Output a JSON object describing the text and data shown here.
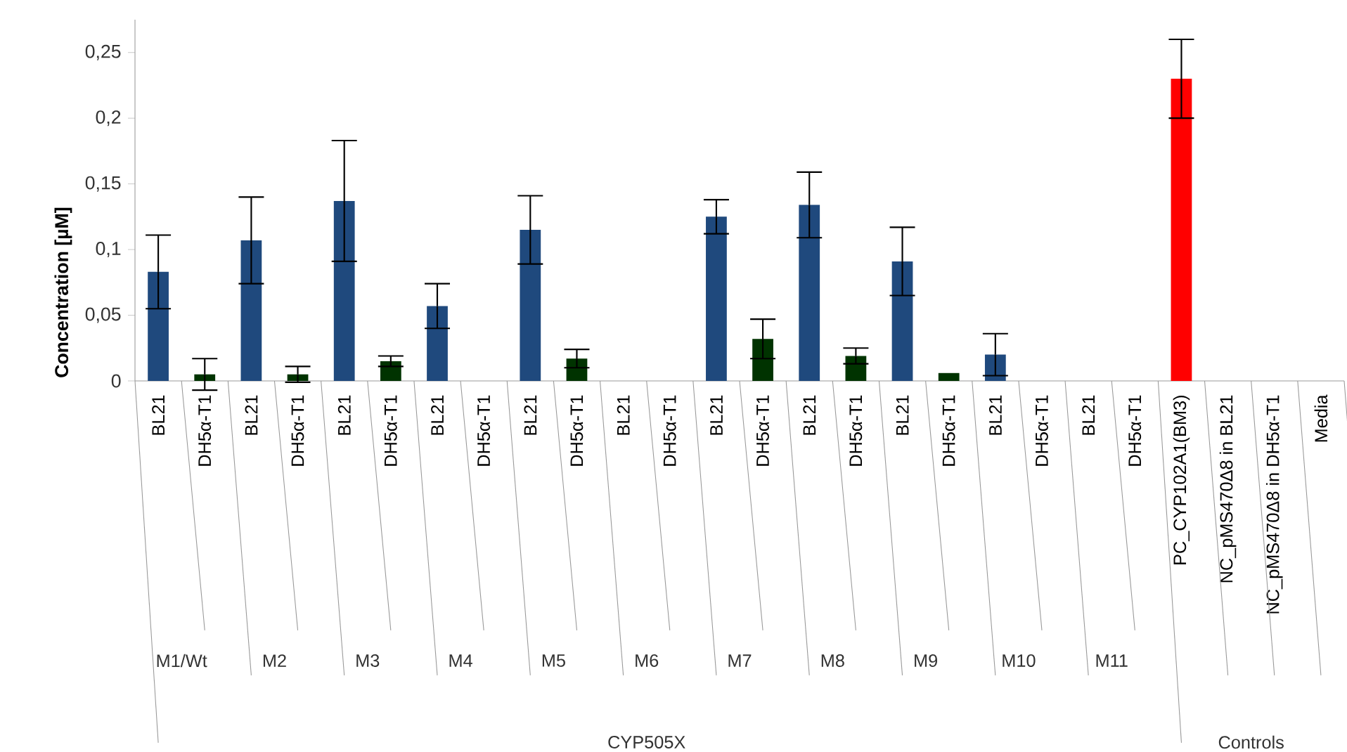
{
  "chart_data": {
    "type": "bar",
    "ylabel": "Concentration [µM]",
    "categories": [
      "BL21",
      "DH5α-T1",
      "BL21",
      "DH5α-T1",
      "BL21",
      "DH5α-T1",
      "BL21",
      "DH5α-T1",
      "BL21",
      "DH5α-T1",
      "BL21",
      "DH5α-T1",
      "BL21",
      "DH5α-T1",
      "BL21",
      "DH5α-T1",
      "BL21",
      "DH5α-T1",
      "BL21",
      "DH5α-T1",
      "BL21",
      "DH5α-T1",
      "PC_CYP102A1(BM3)",
      "NC_pMS470Δ8 in BL21",
      "NC_pMS470Δ8 in DH5α-T1",
      "Media"
    ],
    "values": [
      0.083,
      0.005,
      0.107,
      0.005,
      0.137,
      0.015,
      0.057,
      null,
      0.115,
      0.017,
      null,
      null,
      0.125,
      0.032,
      0.134,
      0.019,
      0.091,
      0.006,
      0.02,
      null,
      null,
      null,
      0.23,
      null,
      null,
      null
    ],
    "errors": [
      0.028,
      0.012,
      0.033,
      0.006,
      0.046,
      0.004,
      0.017,
      null,
      0.026,
      0.007,
      null,
      null,
      0.013,
      0.015,
      0.025,
      0.006,
      0.026,
      null,
      0.016,
      null,
      null,
      null,
      0.03,
      null,
      null,
      null
    ],
    "colors": [
      "#1f497d",
      "#003300",
      "#1f497d",
      "#003300",
      "#1f497d",
      "#003300",
      "#1f497d",
      "#003300",
      "#1f497d",
      "#003300",
      "#1f497d",
      "#003300",
      "#1f497d",
      "#003300",
      "#1f497d",
      "#003300",
      "#1f497d",
      "#003300",
      "#1f497d",
      "#003300",
      "#1f497d",
      "#003300",
      "#ff0000",
      "#1f497d",
      "#003300",
      "#1f497d"
    ],
    "ylim": [
      0,
      0.275
    ],
    "yticks": [
      0,
      {
        "value": 0.05,
        "label": "0,05"
      },
      {
        "value": 0.1,
        "label": "0,1"
      },
      {
        "value": 0.15,
        "label": "0,15"
      },
      {
        "value": 0.2,
        "label": "0,2"
      },
      {
        "value": 0.25,
        "label": "0,25"
      }
    ],
    "annotations": [
      "M1/Wt",
      "M2",
      "M3",
      "M4",
      "M5",
      "M6",
      "M7",
      "M8",
      "M9",
      "M10",
      "M11",
      "CYP505X",
      "Controls"
    ]
  }
}
